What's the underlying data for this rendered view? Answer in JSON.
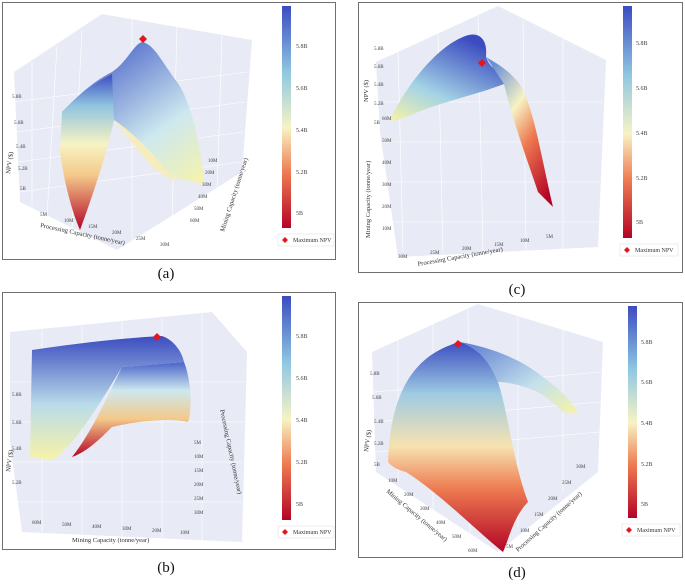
{
  "figure": {
    "legend_label": "Maximum NPV",
    "colorbar_ticks": [
      "5B",
      "5.2B",
      "5.4B",
      "5.6B",
      "5.8B"
    ],
    "colors": {
      "high": "#3b4cc0",
      "mid": "#f7f3c4",
      "low": "#b40426",
      "marker": "#e8141c",
      "pane": "#e8ebf5"
    }
  },
  "chart_data": [
    {
      "type": "surface",
      "caption": "(a)",
      "xlabel": "Processing Capacity (tonne/year)",
      "ylabel": "Mining Capacity (tonne/year)",
      "zlabel": "NPV ($)",
      "x_ticks": [
        "5M",
        "10M",
        "15M",
        "20M",
        "25M",
        "30M"
      ],
      "y_ticks": [
        "10M",
        "20M",
        "30M",
        "40M",
        "50M",
        "60M"
      ],
      "z_ticks": [
        "5B",
        "5.2B",
        "5.4B",
        "5.6B",
        "5.8B"
      ],
      "zlim": [
        5.0,
        5.9
      ],
      "colorbar": true
    },
    {
      "type": "surface",
      "caption": "(c)",
      "xlabel": "Processing Capacity (tonne/year)",
      "ylabel": "Mining Capacity (tonne/year)",
      "zlabel": "NPV ($)",
      "x_ticks": [
        "30M",
        "25M",
        "20M",
        "15M",
        "10M",
        "5M"
      ],
      "y_ticks": [
        "10M",
        "20M",
        "30M",
        "40M",
        "50M",
        "60M"
      ],
      "z_ticks": [
        "5B",
        "5.2B",
        "5.4B",
        "5.6B",
        "5.8B"
      ],
      "zlim": [
        5.0,
        5.9
      ],
      "colorbar": true
    },
    {
      "type": "surface",
      "caption": "(b)",
      "xlabel": "Mining Capacity (tonne/year)",
      "ylabel": "Processing Capacity (tonne/year)",
      "zlabel": "NPV ($)",
      "x_ticks": [
        "60M",
        "50M",
        "40M",
        "30M",
        "20M",
        "10M"
      ],
      "y_ticks": [
        "5M",
        "10M",
        "15M",
        "20M",
        "25M",
        "30M"
      ],
      "z_ticks": [
        "5.2B",
        "5.4B",
        "5.6B",
        "5.8B"
      ],
      "zlim": [
        5.0,
        5.9
      ],
      "colorbar": true
    },
    {
      "type": "surface",
      "caption": "(d)",
      "xlabel": "Mining Capacity (tonne/year)",
      "ylabel": "Processing Capacity (tonne/year)",
      "zlabel": "NPV ($)",
      "x_ticks": [
        "10M",
        "20M",
        "30M",
        "40M",
        "50M",
        "60M"
      ],
      "y_ticks": [
        "5M",
        "10M",
        "15M",
        "20M",
        "25M",
        "30M"
      ],
      "z_ticks": [
        "5B",
        "5.2B",
        "5.4B",
        "5.6B",
        "5.8B"
      ],
      "zlim": [
        5.0,
        5.9
      ],
      "colorbar": true
    }
  ]
}
